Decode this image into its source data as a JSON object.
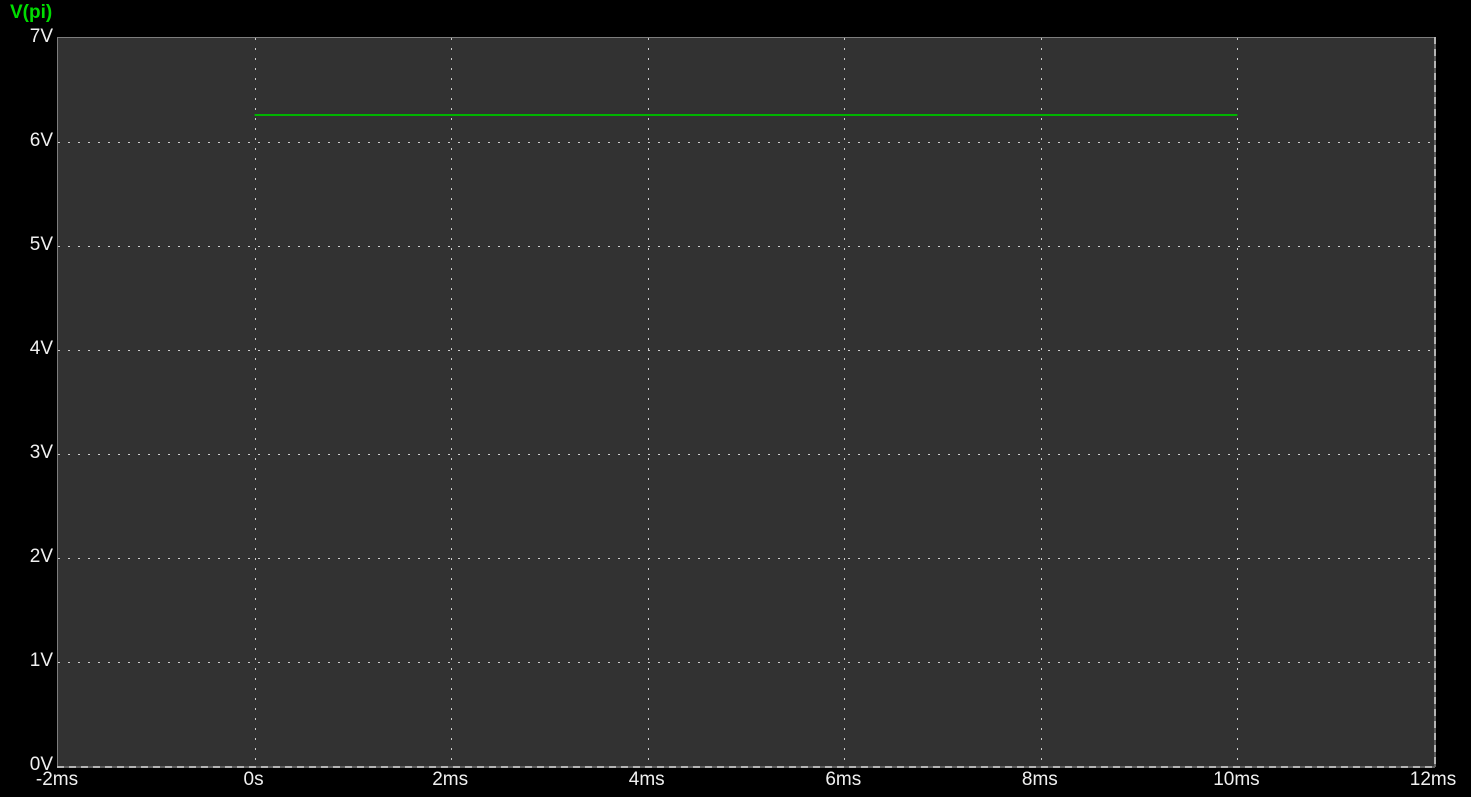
{
  "window": {
    "background": "#000000"
  },
  "trace_label": {
    "text": "V(pi)",
    "color": "#00dc00"
  },
  "colors": {
    "plot_background": "#323232",
    "plot_border": "#7d7d7d",
    "grid_dots": "#cccccc",
    "axis_text": "#f0f0f0",
    "trace": "#00b400"
  },
  "chart_data": {
    "type": "line",
    "title": "",
    "xlabel": "",
    "ylabel": "",
    "grid": true,
    "legend_position": "top-left",
    "x_axis": {
      "unit": "ms",
      "min": -2,
      "max": 12,
      "tick_step": 2,
      "tick_labels": [
        "-2ms",
        "0s",
        "2ms",
        "4ms",
        "6ms",
        "8ms",
        "10ms",
        "12ms"
      ]
    },
    "y_axis": {
      "unit": "V",
      "min": 0,
      "max": 7,
      "tick_step": 1,
      "tick_labels": [
        "0V",
        "1V",
        "2V",
        "3V",
        "4V",
        "5V",
        "6V",
        "7V"
      ]
    },
    "series": [
      {
        "name": "V(pi)",
        "color": "#00b400",
        "points": [
          {
            "x_ms": 0,
            "y_V": 6.26
          },
          {
            "x_ms": 10,
            "y_V": 6.26
          }
        ]
      }
    ]
  }
}
